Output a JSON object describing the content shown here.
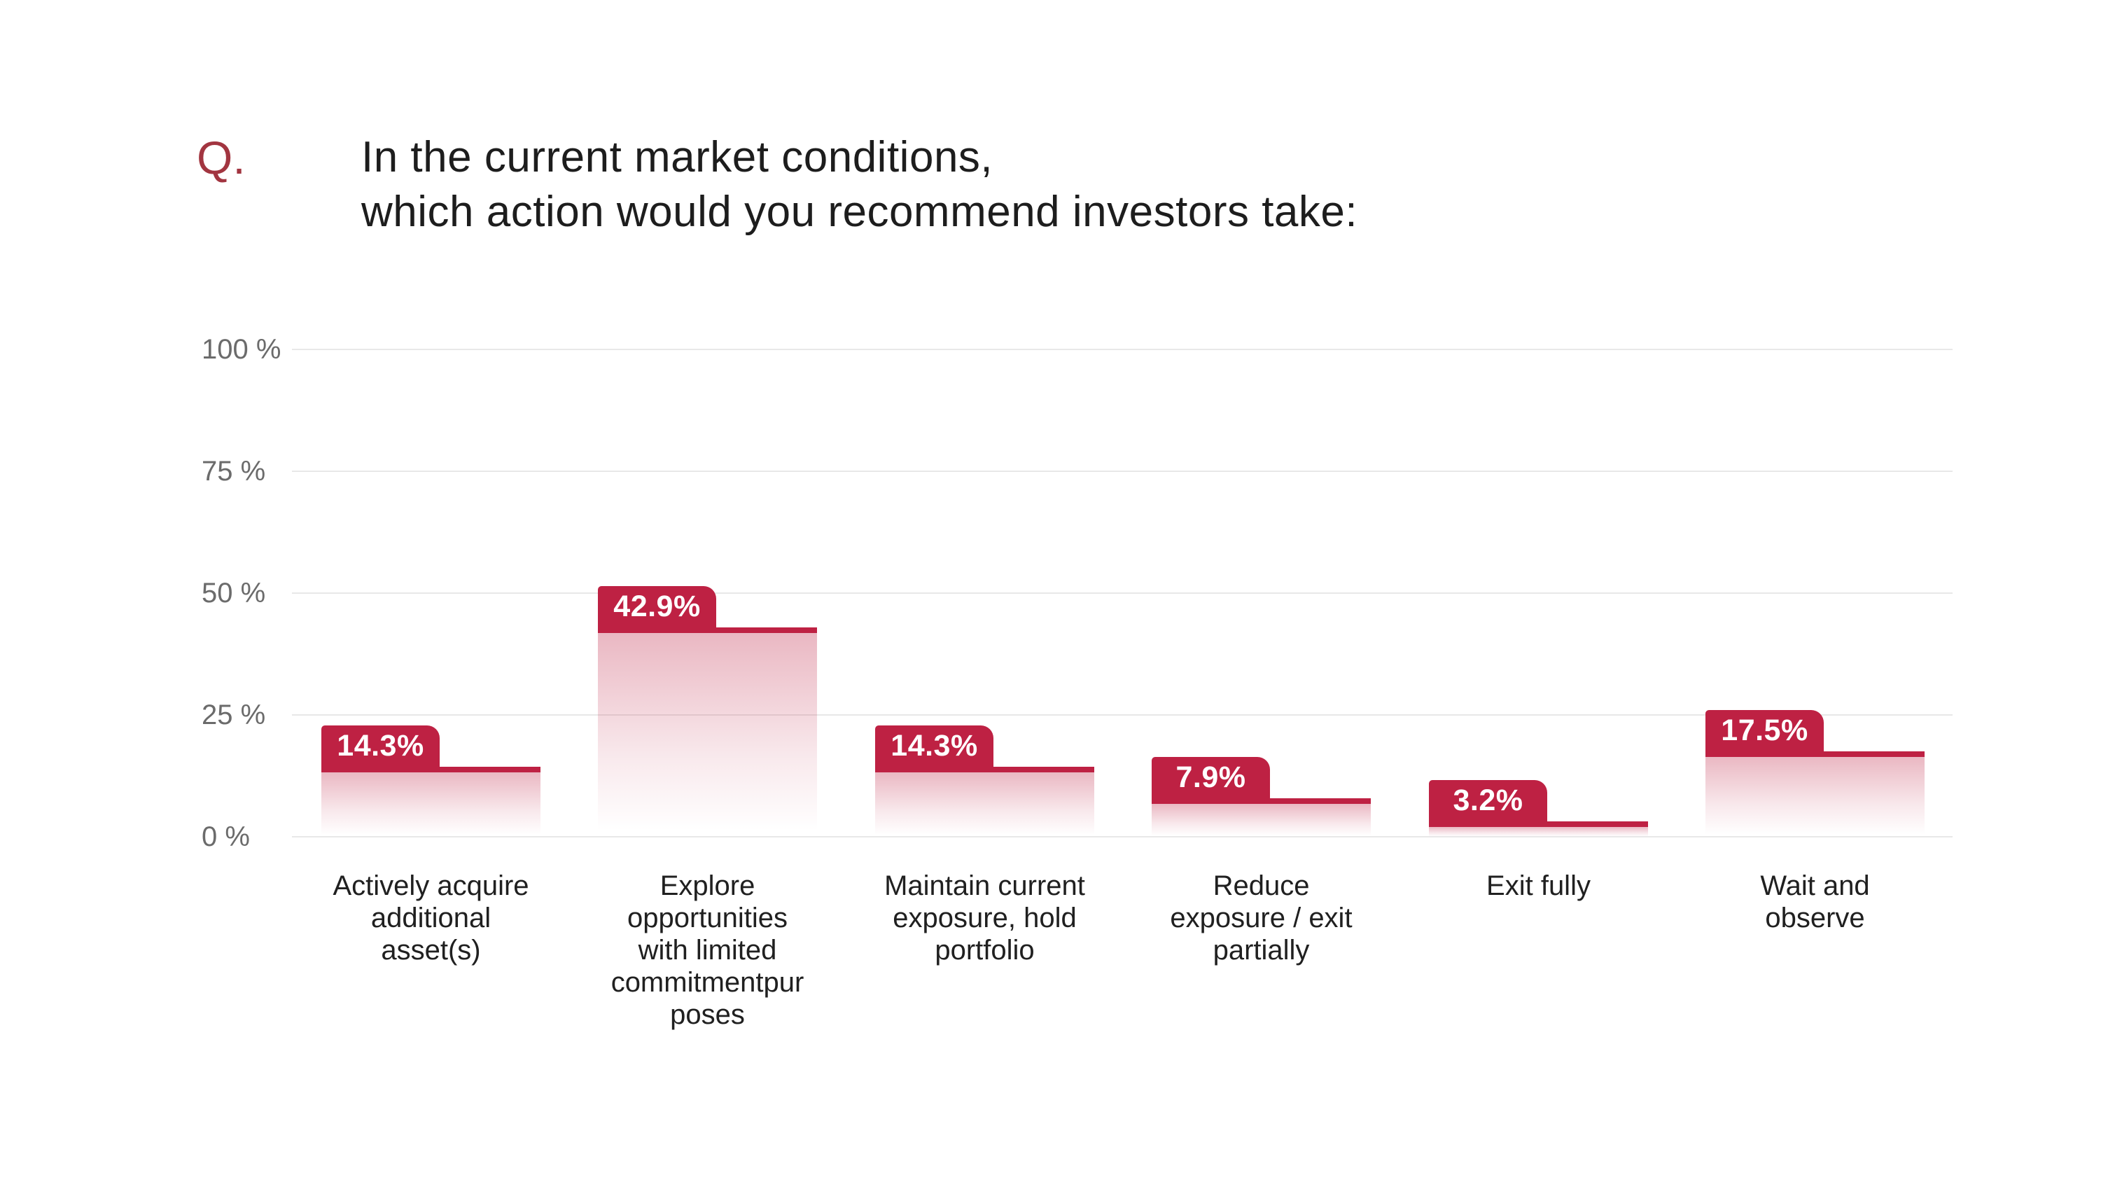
{
  "question": {
    "marker": "Q.",
    "lines": [
      "In the current market conditions,",
      "which action would you recommend investors take:"
    ]
  },
  "chart_data": {
    "type": "bar",
    "title": "In the current market conditions, which action would you recommend investors take:",
    "categories": [
      "Actively acquire additional asset(s)",
      "Explore opportunities with limited commitmentpur poses",
      "Maintain current exposure, hold portfolio",
      "Reduce exposure / exit partially",
      "Exit fully",
      "Wait and observe"
    ],
    "category_lines": [
      [
        "Actively acquire",
        "additional",
        "asset(s)"
      ],
      [
        "Explore",
        "opportunities",
        "with limited",
        "commitmentpur",
        "poses"
      ],
      [
        "Maintain current",
        "exposure, hold",
        "portfolio"
      ],
      [
        "Reduce",
        "exposure / exit",
        "partially"
      ],
      [
        "Exit fully"
      ],
      [
        "Wait and",
        "observe"
      ]
    ],
    "values": [
      14.3,
      42.9,
      14.3,
      7.9,
      3.2,
      17.5
    ],
    "value_labels": [
      "14.3%",
      "42.9%",
      "14.3%",
      "7.9%",
      "3.2%",
      "17.5%"
    ],
    "ytick_labels": [
      "100 %",
      "75 %",
      "50 %",
      "25 %",
      "0 %"
    ],
    "ytick_values": [
      100,
      75,
      50,
      25,
      0
    ],
    "ylim": [
      0,
      100
    ],
    "xlabel": "",
    "ylabel": "",
    "grid": true,
    "legend": "none",
    "colors": {
      "accent_red": "#BE2143",
      "question_marker_red": "#A23540",
      "title_text": "#1D1D1D",
      "ytick_text": "#6B6B6B",
      "xlabel_text": "#202020",
      "gridline": "#E8E8E8",
      "badge_text": "#FFFFFF",
      "gradient_top_rgba": "rgba(190,33,67,0.32)",
      "background": "#FFFFFF"
    }
  }
}
